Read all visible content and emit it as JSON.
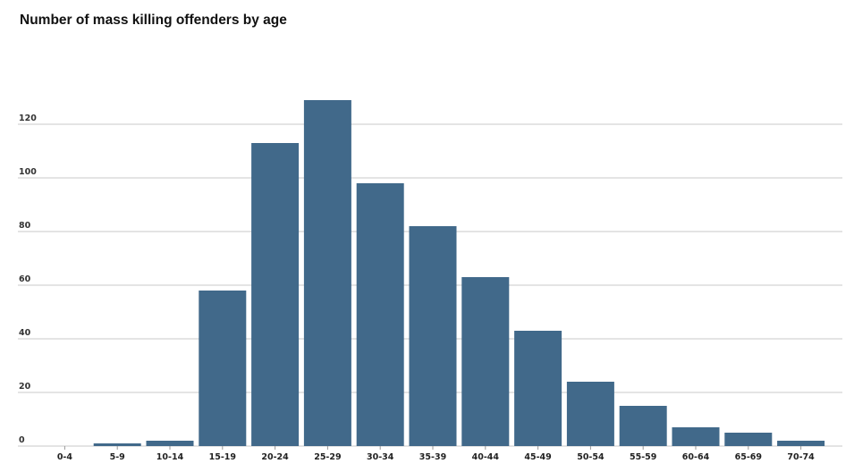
{
  "chart_data": {
    "type": "bar",
    "title": "Number of mass killing offenders by age",
    "xlabel": "",
    "ylabel": "",
    "categories": [
      "0-4",
      "5-9",
      "10-14",
      "15-19",
      "20-24",
      "25-29",
      "30-34",
      "35-39",
      "40-44",
      "45-49",
      "50-54",
      "55-59",
      "60-64",
      "65-69",
      "70-74"
    ],
    "values": [
      0,
      1,
      2,
      58,
      113,
      129,
      98,
      82,
      63,
      43,
      24,
      15,
      7,
      5,
      2
    ],
    "y_ticks": [
      0,
      20,
      40,
      60,
      80,
      100,
      120
    ],
    "ylim": [
      0,
      130
    ],
    "grid": true,
    "legend": "none",
    "bar_color": "#41698a",
    "grid_color": "#c8c8c8"
  }
}
